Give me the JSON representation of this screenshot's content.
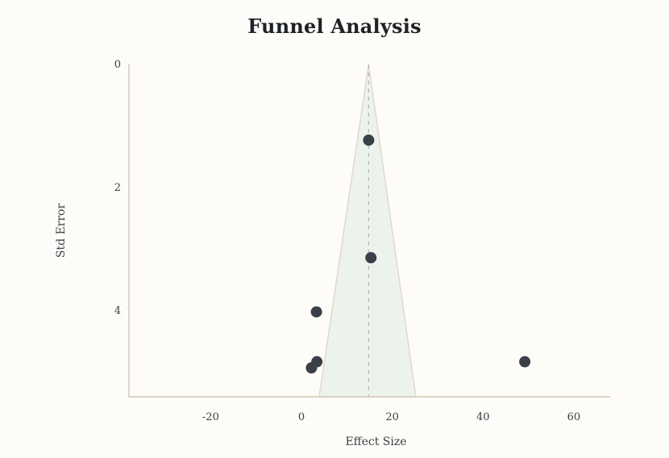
{
  "chart_data": {
    "type": "scatter",
    "title": "Funnel Analysis",
    "xlabel": "Effect Size",
    "ylabel": "Std Error",
    "xlim": [
      -38,
      68
    ],
    "ylim": [
      0,
      5.4
    ],
    "y_inverted": true,
    "x_ticks": [
      -20,
      0,
      20,
      40,
      60
    ],
    "y_ticks": [
      0,
      2,
      4
    ],
    "pooled_effect": 14.8,
    "funnel": {
      "apex": [
        14.8,
        0
      ],
      "base_left": [
        3.9,
        5.4
      ],
      "base_right": [
        25.2,
        5.4
      ]
    },
    "points": [
      {
        "x": 14.8,
        "y": 1.23
      },
      {
        "x": 15.3,
        "y": 3.14
      },
      {
        "x": 3.3,
        "y": 4.02
      },
      {
        "x": 3.4,
        "y": 4.83
      },
      {
        "x": 2.2,
        "y": 4.93
      },
      {
        "x": 49.2,
        "y": 4.83
      }
    ],
    "grid": false,
    "colors": {
      "points": "#3b4048",
      "funnel_fill": "#ecf3ec",
      "funnel_edge": "#e3d8cc",
      "pooled_line": "#b8b8b8",
      "axis": "#d4c6b6",
      "background": "#fdfcf8"
    }
  }
}
